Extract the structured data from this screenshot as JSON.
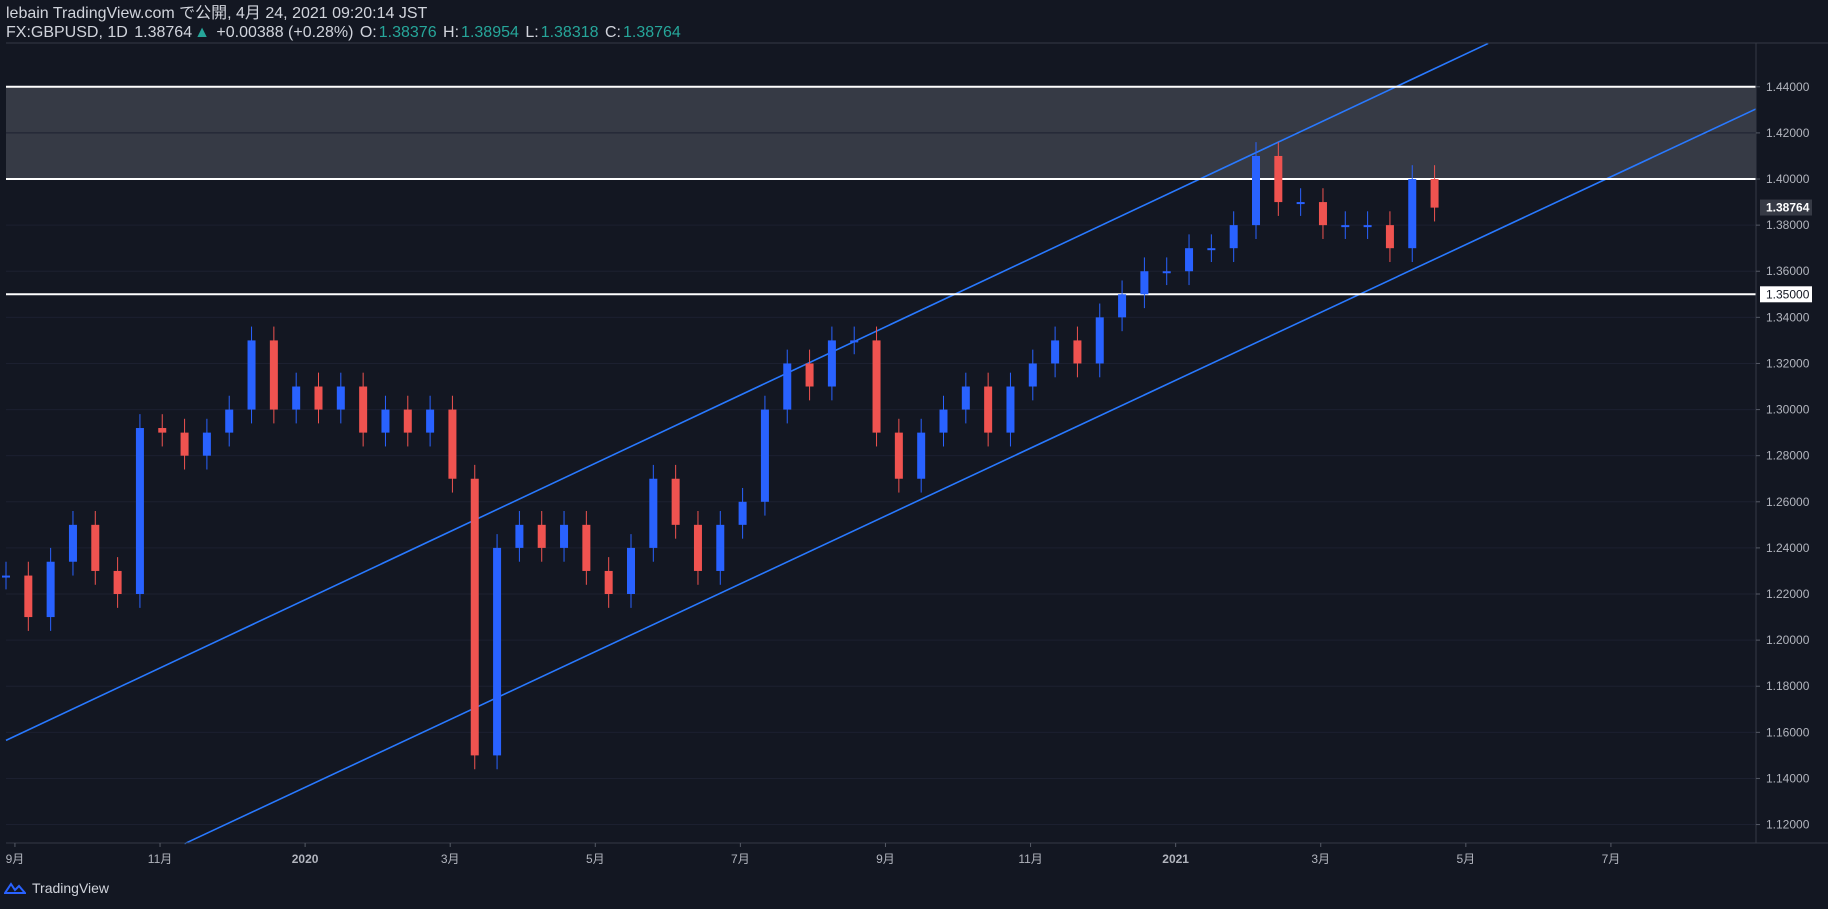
{
  "header": {
    "line1": "lebain TradingView.com で公開, 4月 24, 2021 09:20:14 JST",
    "symbol": "FX:GBPUSD, 1D",
    "last": "1.38764",
    "change_arrow": "▲",
    "change": "+0.00388 (+0.28%)",
    "o_label": "O:",
    "o": "1.38376",
    "h_label": "H:",
    "h": "1.38954",
    "l_label": "L:",
    "l": "1.38318",
    "c_label": "C:",
    "c": "1.38764"
  },
  "footer": {
    "brand": "TradingView",
    "logo_icon": "tradingview-logo-icon"
  },
  "colors": {
    "background": "#131722",
    "up": "#2962ff",
    "down": "#ef5350",
    "channel": "#2979ff",
    "level": "#ffffff",
    "zone": "#363a45",
    "text": "#d1d4dc"
  },
  "chart_data": {
    "type": "line",
    "title": "FX:GBPUSD, 1D",
    "x_ticks": [
      "9月",
      "11月",
      "2020",
      "3月",
      "5月",
      "7月",
      "9月",
      "11月",
      "2021",
      "3月",
      "5月",
      "7月"
    ],
    "y_ticks": [
      "1.44000",
      "1.42000",
      "1.40000",
      "1.38000",
      "1.36000",
      "1.34000",
      "1.32000",
      "1.30000",
      "1.28000",
      "1.26000",
      "1.24000",
      "1.22000",
      "1.20000",
      "1.18000",
      "1.16000",
      "1.14000",
      "1.12000"
    ],
    "ylim": [
      1.112,
      1.459
    ],
    "xlim": [
      0,
      39.2
    ],
    "last_price_label": "1.38764",
    "level_label": "1.35000",
    "horizontal_levels": [
      1.44,
      1.4,
      1.35
    ],
    "resistance_zone": [
      1.4,
      1.44
    ],
    "channel_lines": [
      {
        "name": "upper",
        "x": [
          0,
          33.2
        ],
        "y": [
          1.1565,
          1.4588
        ]
      },
      {
        "name": "lower",
        "x": [
          4,
          39.2
        ],
        "y": [
          1.1117,
          1.4304
        ]
      }
    ],
    "series": [
      {
        "name": "GBPUSD close",
        "x": [
          0,
          0.5,
          1,
          1.5,
          2,
          2.5,
          3,
          3.5,
          4,
          4.5,
          5,
          5.5,
          6,
          6.5,
          7,
          7.5,
          8,
          8.5,
          9,
          9.5,
          10,
          10.5,
          11,
          11.5,
          12,
          12.5,
          13,
          13.5,
          14,
          14.5,
          15,
          15.5,
          16,
          16.5,
          17,
          17.5,
          18,
          18.5,
          19,
          19.5,
          20,
          20.5,
          21,
          21.5,
          22,
          22.5,
          23,
          23.5,
          24,
          24.5,
          25,
          25.5,
          26,
          26.5,
          27,
          27.5,
          28,
          28.5,
          29,
          29.5,
          30,
          30.5,
          31,
          31.5,
          32
        ],
        "values": [
          1.228,
          1.21,
          1.234,
          1.25,
          1.23,
          1.22,
          1.292,
          1.29,
          1.28,
          1.29,
          1.3,
          1.33,
          1.3,
          1.31,
          1.3,
          1.31,
          1.29,
          1.3,
          1.29,
          1.3,
          1.27,
          1.15,
          1.24,
          1.25,
          1.24,
          1.25,
          1.23,
          1.22,
          1.24,
          1.27,
          1.25,
          1.23,
          1.25,
          1.26,
          1.3,
          1.32,
          1.31,
          1.33,
          1.33,
          1.29,
          1.27,
          1.29,
          1.3,
          1.31,
          1.29,
          1.31,
          1.32,
          1.33,
          1.32,
          1.34,
          1.35,
          1.36,
          1.36,
          1.37,
          1.37,
          1.38,
          1.41,
          1.39,
          1.39,
          1.38,
          1.38,
          1.38,
          1.37,
          1.4,
          1.3876
        ]
      }
    ]
  }
}
